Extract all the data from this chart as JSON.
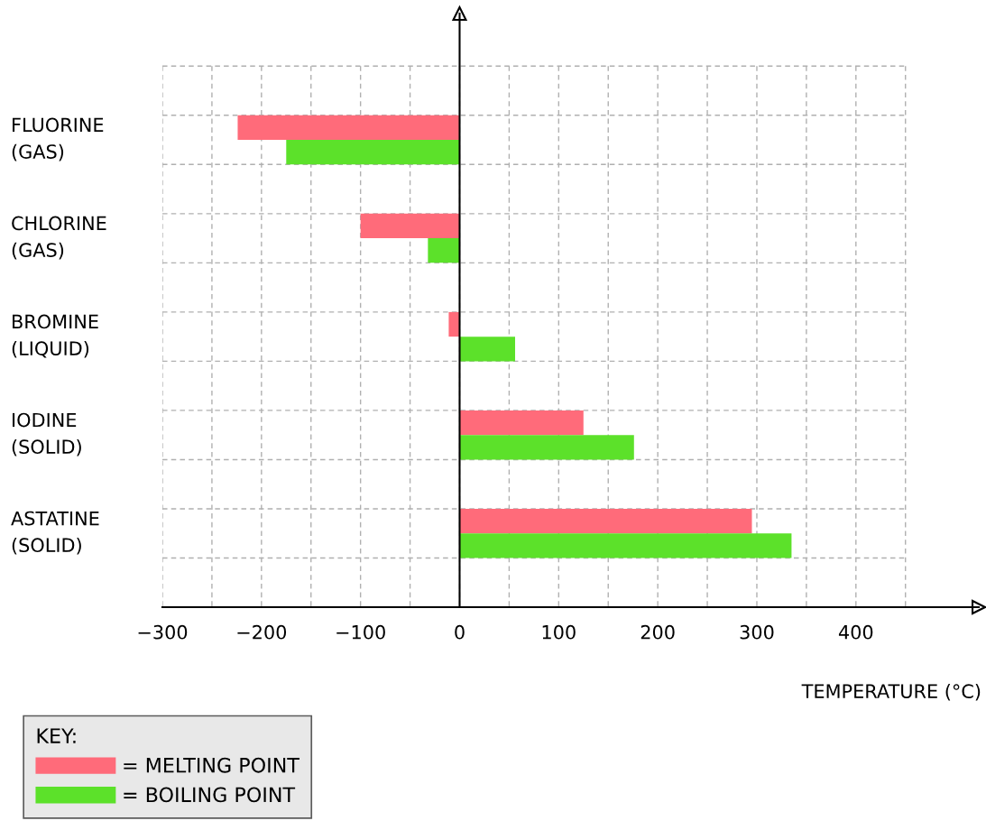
{
  "chart_data": {
    "type": "bar",
    "orientation": "horizontal",
    "categories": [
      "FLUORINE\n(GAS)",
      "CHLORINE\n(GAS)",
      "BROMINE\n(LIQUID)",
      "IODINE\n(SOLID)",
      "ASTATINE\n(SOLID)"
    ],
    "series": [
      {
        "name": "= MELTING POINT",
        "color": "#ff6b7a",
        "values": [
          -224,
          -100,
          -11,
          125,
          295
        ]
      },
      {
        "name": "= BOILING POINT",
        "color": "#5ce12a",
        "values": [
          -175,
          -32,
          56,
          176,
          335
        ]
      }
    ],
    "xlabel": "TEMPERATURE (°C)",
    "xlim": [
      -300,
      524
    ],
    "xticks": [
      -300,
      {
        "value": -250,
        "label": null
      },
      -200,
      {
        "value": -150,
        "label": null
      },
      -100,
      {
        "value": -50,
        "label": null
      },
      0,
      {
        "value": 50,
        "label": null
      },
      100,
      {
        "value": 150,
        "label": null
      },
      200,
      {
        "value": 250,
        "label": null
      },
      300,
      {
        "value": 350,
        "label": null
      },
      400,
      {
        "value": 450,
        "label": null
      }
    ],
    "grid": true,
    "legend": "bottom left",
    "legend_title": "KEY:"
  }
}
